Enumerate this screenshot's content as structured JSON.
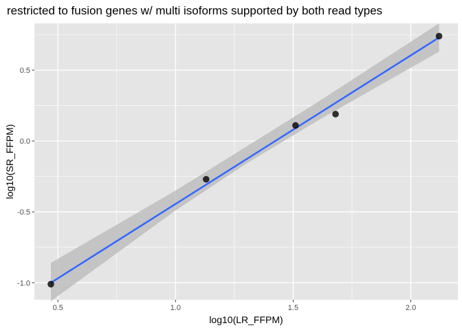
{
  "chart_data": {
    "type": "scatter",
    "title": "restricted to fusion genes w/ multi isoforms supported by both read types",
    "xlabel": "log10(LR_FFPM)",
    "ylabel": "log10(SR_FFPM)",
    "xlim": [
      0.4,
      2.2
    ],
    "ylim": [
      -1.12,
      0.83
    ],
    "x_ticks": [
      0.5,
      1.0,
      1.5,
      2.0
    ],
    "x_tick_labels": [
      "0.5",
      "1.0",
      "1.5",
      "2.0"
    ],
    "y_ticks": [
      -1.0,
      -0.5,
      0.0,
      0.5
    ],
    "y_tick_labels": [
      "-1.0",
      "-0.5",
      "0.0",
      "0.5"
    ],
    "grid": true,
    "legend": "none",
    "points": [
      {
        "x": 0.47,
        "y": -1.01
      },
      {
        "x": 1.13,
        "y": -0.27
      },
      {
        "x": 1.51,
        "y": 0.11
      },
      {
        "x": 1.68,
        "y": 0.19
      },
      {
        "x": 2.12,
        "y": 0.74
      }
    ],
    "fit_line": {
      "x_start": 0.47,
      "y_start": -1.0,
      "x_end": 2.12,
      "y_end": 0.73
    },
    "confidence_band": [
      {
        "x": 0.47,
        "lower": -1.13,
        "upper": -0.86
      },
      {
        "x": 1.0,
        "lower": -0.49,
        "upper": -0.35
      },
      {
        "x": 1.3,
        "lower": -0.16,
        "upper": -0.04
      },
      {
        "x": 1.6,
        "lower": 0.14,
        "upper": 0.27
      },
      {
        "x": 2.12,
        "lower": 0.63,
        "upper": 0.83
      }
    ],
    "colors": {
      "panel_background": "#e5e5e5",
      "grid": "#ffffff",
      "point": "#000000",
      "fit_line": "#3366ff",
      "band": "#bebebe"
    }
  }
}
